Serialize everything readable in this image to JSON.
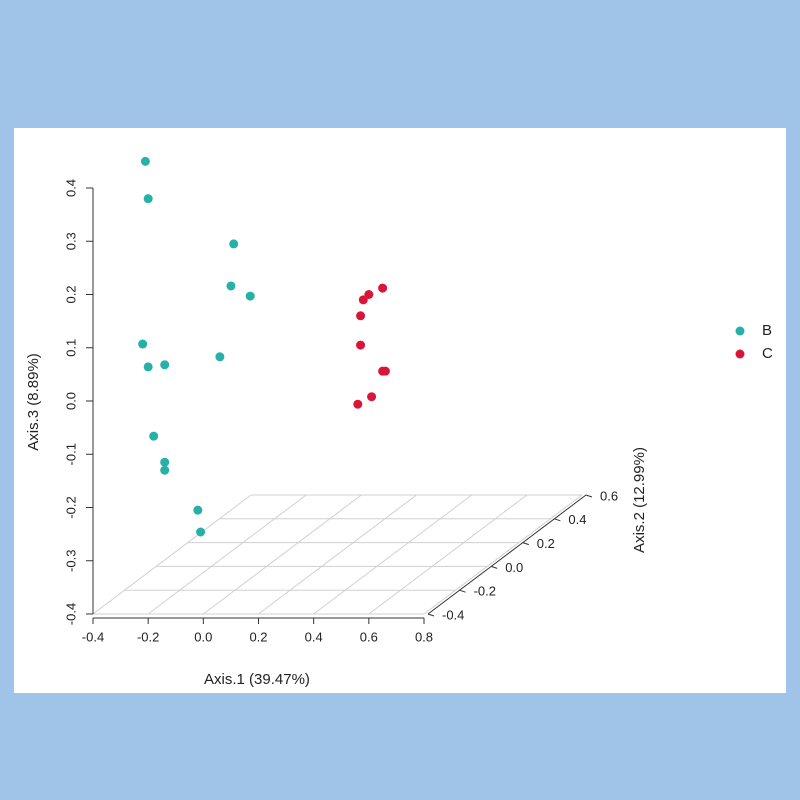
{
  "chart_data": {
    "type": "scatter3d",
    "xlabel": "Axis.1 (39.47%)",
    "ylabel": "Axis.3 (8.89%)",
    "zlabel": "Axis.2 (12.99%)",
    "xlim": [
      -0.4,
      0.8
    ],
    "xticks": [
      -0.4,
      -0.2,
      {
        "value": 0,
        "label": "0.0"
      },
      0.2,
      0.4,
      0.6,
      0.8
    ],
    "ylim": [
      -0.4,
      0.4
    ],
    "yticks": [
      -0.4,
      -0.3,
      -0.2,
      -0.1,
      {
        "value": 0,
        "label": "0.0"
      },
      0.1,
      0.2,
      0.3,
      0.4
    ],
    "zlim": [
      -0.4,
      0.6
    ],
    "zticks": [
      -0.4,
      -0.2,
      {
        "value": 0,
        "label": "0.0"
      },
      0.2,
      0.4,
      0.6
    ],
    "grid": true,
    "legend": "right",
    "series": [
      {
        "name": "B",
        "color": "#26b0a8",
        "x": [
          -0.21,
          -0.2,
          0.11,
          0.1,
          0.17,
          0.06,
          -0.22,
          -0.2,
          -0.14,
          -0.18,
          -0.14,
          -0.14,
          -0.02,
          -0.01
        ],
        "values": [
          0.45,
          0.38,
          0.295,
          0.216,
          0.197,
          0.083,
          0.107,
          0.064,
          0.068,
          -0.066,
          -0.115,
          -0.13,
          -0.205,
          -0.246
        ]
      },
      {
        "name": "C",
        "color": "#d9163a",
        "x": [
          0.65,
          0.6,
          0.58,
          0.57,
          0.57,
          0.65,
          0.66,
          0.61,
          0.56
        ],
        "values": [
          0.212,
          0.2,
          0.19,
          0.16,
          0.105,
          0.056,
          0.056,
          0.008,
          -0.006
        ]
      }
    ]
  }
}
